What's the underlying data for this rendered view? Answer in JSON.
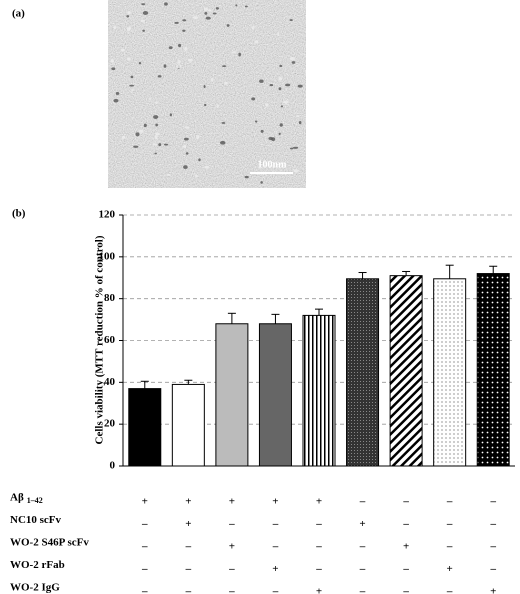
{
  "panel_a": {
    "label": "(a)",
    "scale_bar": "100nm"
  },
  "chart_data": {
    "type": "bar",
    "panel_label": "(b)",
    "ylabel": "Cells viability (MTT reduction % of control)",
    "values": [
      37,
      39,
      68,
      68,
      72,
      89.5,
      91,
      89.5,
      92
    ],
    "errors": [
      3.5,
      2,
      5,
      4.5,
      3,
      3,
      2,
      6.5,
      3.5
    ],
    "fills": [
      "black",
      "white",
      "light-gray",
      "dark-gray",
      "vertical-stripes",
      "dark-crosshatch",
      "diagonal-stripes",
      "light-dots",
      "black-dots"
    ],
    "ylim": [
      0,
      120
    ],
    "yticks": [
      0,
      20,
      40,
      60,
      80,
      100,
      120
    ],
    "grid": true,
    "treatments": [
      {
        "label": "Aβ",
        "sub": "1–42",
        "marks": [
          "+",
          "+",
          "+",
          "+",
          "+",
          "–",
          "–",
          "–",
          "–"
        ]
      },
      {
        "label": "NC10 scFv",
        "marks": [
          "–",
          "+",
          "–",
          "–",
          "–",
          "+",
          "–",
          "–",
          "–"
        ]
      },
      {
        "label": "WO-2 S46P scFv",
        "marks": [
          "–",
          "–",
          "+",
          "–",
          "–",
          "–",
          "+",
          "–",
          "–"
        ]
      },
      {
        "label": "WO-2 rFab",
        "marks": [
          "–",
          "–",
          "–",
          "+",
          "–",
          "–",
          "–",
          "+",
          "–"
        ]
      },
      {
        "label": "WO-2 IgG",
        "marks": [
          "–",
          "–",
          "–",
          "–",
          "+",
          "–",
          "–",
          "–",
          "+"
        ]
      }
    ]
  }
}
